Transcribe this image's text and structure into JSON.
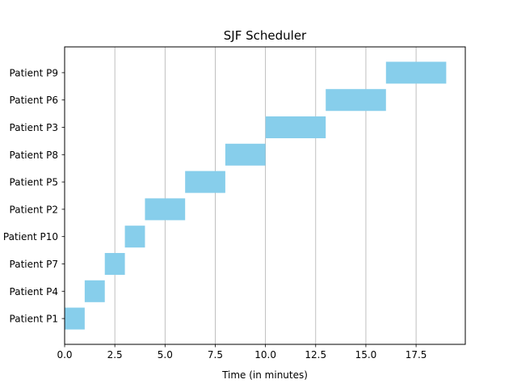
{
  "chart_data": {
    "type": "bar",
    "orientation": "horizontal",
    "title": "SJF Scheduler",
    "xlabel": "Time (in minutes)",
    "ylabel": "",
    "xlim": [
      0,
      19.95
    ],
    "x_ticks": [
      0,
      2.5,
      5,
      7.5,
      10,
      12.5,
      15,
      17.5
    ],
    "x_tick_labels": [
      "0.0",
      "2.5",
      "5.0",
      "7.5",
      "10.0",
      "12.5",
      "15.0",
      "17.5"
    ],
    "grid": "vertical",
    "bar_color": "#87ceeb",
    "categories": [
      "Patient P1",
      "Patient P4",
      "Patient P7",
      "Patient P10",
      "Patient P2",
      "Patient P5",
      "Patient P8",
      "Patient P3",
      "Patient P6",
      "Patient P9"
    ],
    "start": [
      0,
      1,
      2,
      3,
      4,
      6,
      8,
      10,
      13,
      16
    ],
    "duration": [
      1,
      1,
      1,
      1,
      2,
      2,
      2,
      3,
      3,
      3
    ]
  }
}
